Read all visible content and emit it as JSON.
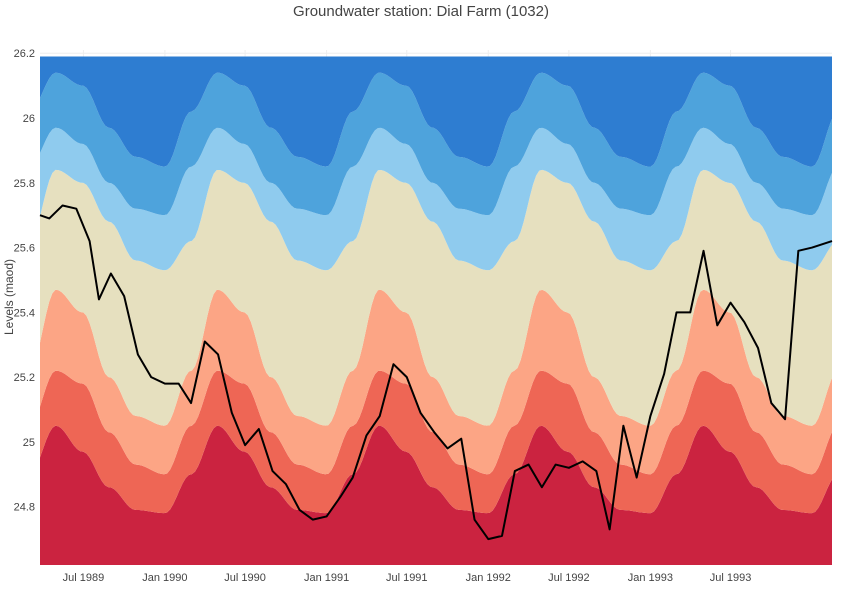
{
  "chart_data": {
    "type": "area",
    "title": "Groundwater station: Dial Farm (1032)",
    "xlabel": "",
    "ylabel": "Levels (maod)",
    "xlim": [
      "1989-03-25",
      "1994-02-15"
    ],
    "ylim": [
      24.62,
      26.21
    ],
    "y_ticks": [
      24.8,
      25,
      25.2,
      25.4,
      25.6,
      25.8,
      26,
      26.2
    ],
    "y_tick_labels": [
      "24.8",
      "25",
      "25.2",
      "25.4",
      "25.6",
      "25.8",
      "26",
      "26.2"
    ],
    "x_ticks": [
      "1989-07-01",
      "1990-01-01",
      "1990-07-01",
      "1991-01-01",
      "1991-07-01",
      "1992-01-01",
      "1992-07-01",
      "1993-01-01",
      "1993-07-01"
    ],
    "x_tick_labels": [
      "Jul 1989",
      "Jan 1990",
      "Jul 1990",
      "Jan 1991",
      "Jul 1991",
      "Jan 1992",
      "Jul 1992",
      "Jan 1993",
      "Jul 1993"
    ],
    "grid": true,
    "legend": "none",
    "band_seasonal_profile": {
      "description_axis": "day_of_year",
      "day_of_year": [
        1,
        60,
        120,
        180,
        240,
        300,
        366
      ],
      "boundaries": [
        {
          "values": [
            24.78,
            24.9,
            25.05,
            24.97,
            24.86,
            24.79,
            24.78
          ]
        },
        {
          "values": [
            24.9,
            25.05,
            25.22,
            25.18,
            25.03,
            24.93,
            24.9
          ]
        },
        {
          "values": [
            25.05,
            25.22,
            25.47,
            25.4,
            25.2,
            25.08,
            25.05
          ]
        },
        {
          "values": [
            25.53,
            25.62,
            25.84,
            25.8,
            25.68,
            25.56,
            25.53
          ]
        },
        {
          "values": [
            25.7,
            25.85,
            25.97,
            25.92,
            25.8,
            25.72,
            25.7
          ]
        },
        {
          "values": [
            25.85,
            26.02,
            26.14,
            26.1,
            25.97,
            25.88,
            25.85
          ]
        }
      ],
      "band_colors": [
        "#cb2340",
        "#ee6655",
        "#fca585",
        "#e6e0bf",
        "#8fcbee",
        "#4ea3dc",
        "#2e7dd1"
      ]
    },
    "series": [
      {
        "color": "#000000",
        "x": [
          "1989-03-25",
          "1989-04-15",
          "1989-05-15",
          "1989-06-15",
          "1989-07-15",
          "1989-08-05",
          "1989-09-01",
          "1989-10-01",
          "1989-11-01",
          "1989-12-01",
          "1990-01-01",
          "1990-02-01",
          "1990-03-01",
          "1990-04-01",
          "1990-05-01",
          "1990-06-01",
          "1990-07-01",
          "1990-08-01",
          "1990-09-01",
          "1990-10-01",
          "1990-11-01",
          "1990-12-01",
          "1991-01-01",
          "1991-02-01",
          "1991-03-01",
          "1991-04-01",
          "1991-05-01",
          "1991-06-01",
          "1991-07-01",
          "1991-08-01",
          "1991-09-01",
          "1991-10-01",
          "1991-11-01",
          "1991-12-01",
          "1992-01-01",
          "1992-02-01",
          "1992-03-01",
          "1992-04-01",
          "1992-05-01",
          "1992-06-01",
          "1992-07-01",
          "1992-08-01",
          "1992-09-01",
          "1992-10-01",
          "1992-11-01",
          "1992-12-01",
          "1993-01-01",
          "1993-02-01",
          "1993-03-01",
          "1993-04-01",
          "1993-05-01",
          "1993-06-01",
          "1993-07-01",
          "1993-08-01",
          "1993-09-01",
          "1993-10-01",
          "1993-11-01",
          "1993-12-01",
          "1994-01-01",
          "1994-02-15"
        ],
        "values": [
          25.7,
          25.69,
          25.73,
          25.72,
          25.62,
          25.44,
          25.52,
          25.45,
          25.27,
          25.2,
          25.18,
          25.18,
          25.12,
          25.31,
          25.27,
          25.09,
          24.99,
          25.04,
          24.91,
          24.87,
          24.79,
          24.76,
          24.77,
          24.83,
          24.89,
          25.02,
          25.08,
          25.24,
          25.2,
          25.09,
          25.03,
          24.98,
          25.01,
          24.76,
          24.7,
          24.71,
          24.91,
          24.93,
          24.86,
          24.93,
          24.92,
          24.94,
          24.91,
          24.73,
          25.05,
          24.89,
          25.08,
          25.21,
          25.4,
          25.4,
          25.59,
          25.36,
          25.43,
          25.37,
          25.29,
          25.12,
          25.07,
          25.59,
          25.6,
          25.62
        ]
      }
    ]
  }
}
